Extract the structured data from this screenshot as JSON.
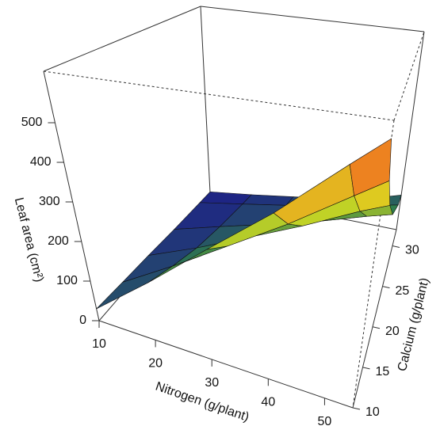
{
  "chart_data": {
    "type": "surface",
    "xlabel": "Nitrogen (g/plant)",
    "ylabel": "Calcium (g/plant)",
    "zlabel": "Leaf area (cm²)",
    "x": [
      10,
      20,
      30,
      40,
      50,
      55
    ],
    "y": [
      10,
      15,
      20,
      25,
      30,
      32
    ],
    "z": [
      [
        30,
        140,
        260,
        380,
        520,
        590
      ],
      [
        25,
        110,
        200,
        290,
        390,
        440
      ],
      [
        20,
        80,
        145,
        210,
        280,
        310
      ],
      [
        12,
        55,
        95,
        135,
        180,
        200
      ],
      [
        5,
        30,
        55,
        80,
        110,
        125
      ],
      [
        2,
        20,
        40,
        60,
        90,
        110
      ]
    ],
    "xlim": [
      10,
      55
    ],
    "ylim": [
      10,
      32
    ],
    "zlim": [
      0,
      630
    ],
    "xticks": [
      10,
      20,
      30,
      40,
      50
    ],
    "yticks": [
      10,
      15,
      20,
      25,
      30
    ],
    "zticks": [
      0,
      100,
      200,
      300,
      400,
      500
    ],
    "colormap": [
      "#1c1c8a",
      "#2f7f4a",
      "#d8e020",
      "#f08a20",
      "#d02020"
    ]
  }
}
